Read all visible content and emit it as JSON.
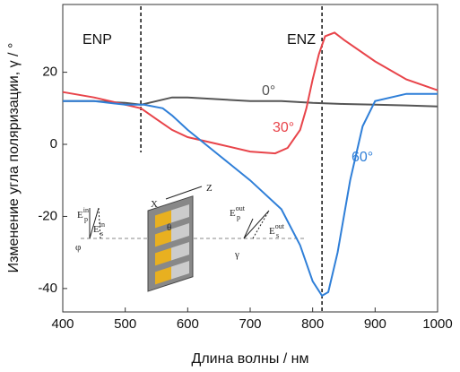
{
  "chart_data": {
    "type": "line",
    "x_label": "Длина волны / нм",
    "y_label": "Изменение угла поляризации, γ / °",
    "xlim": [
      400,
      1000
    ],
    "xticks": [
      400,
      500,
      600,
      700,
      800,
      900,
      1000
    ],
    "ylim": [
      -46.5,
      38.8
    ],
    "yticks": [
      -40,
      -20,
      0,
      20
    ],
    "reference_lines": [
      525,
      815
    ],
    "region_labels": [
      "ENP",
      "ENZ"
    ],
    "series": [
      {
        "name": "0°",
        "color": "#555555",
        "x": [
          400,
          450,
          500,
          525,
          550,
          575,
          600,
          650,
          700,
          750,
          800,
          850,
          900,
          950,
          1000
        ],
        "values": [
          12,
          12,
          11.5,
          11,
          12,
          13,
          13,
          12.5,
          12,
          12,
          11.5,
          11.2,
          11,
          10.8,
          10.5
        ]
      },
      {
        "name": "30°",
        "color": "#e8444a",
        "x": [
          400,
          450,
          500,
          525,
          550,
          575,
          600,
          650,
          700,
          740,
          760,
          780,
          790,
          800,
          810,
          820,
          835,
          850,
          900,
          950,
          1000
        ],
        "values": [
          14.5,
          13,
          11,
          10,
          7,
          4,
          2,
          0,
          -2,
          -2.5,
          -1,
          4,
          10,
          18,
          25,
          30,
          31,
          29,
          23,
          18,
          15
        ]
      },
      {
        "name": "60°",
        "color": "#2f7fd8",
        "x": [
          400,
          450,
          500,
          530,
          560,
          575,
          600,
          650,
          700,
          750,
          780,
          800,
          815,
          825,
          840,
          860,
          880,
          900,
          950,
          1000
        ],
        "values": [
          12,
          12,
          11,
          11,
          10,
          8,
          4,
          -3,
          -10,
          -18,
          -28,
          -38,
          -42,
          -41,
          -30,
          -10,
          5,
          12,
          14,
          14
        ]
      }
    ],
    "inset_labels": [
      {
        "text": "E",
        "sup": "in",
        "sub": "p"
      },
      {
        "text": "φ"
      },
      {
        "text": "E",
        "sup": "in",
        "sub": "s"
      },
      {
        "text": "θ"
      },
      {
        "text": "X"
      },
      {
        "text": "Z"
      },
      {
        "text": "E",
        "sup": "out",
        "sub": "p"
      },
      {
        "text": "γ"
      },
      {
        "text": "E",
        "sup": "out",
        "sub": "s"
      }
    ]
  }
}
